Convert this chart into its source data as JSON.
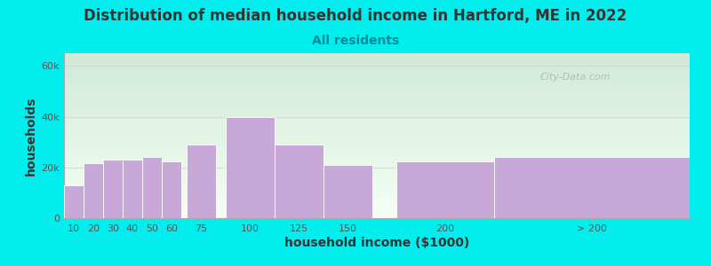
{
  "title": "Distribution of median household income in Hartford, ME in 2022",
  "subtitle": "All residents",
  "xlabel": "household income ($1000)",
  "ylabel": "households",
  "background_color": "#00EEEE",
  "plot_bg_top_color": "#d0ead8",
  "plot_bg_bottom_color": "#f5fff5",
  "bar_color": "#c8a8d8",
  "bar_edge_color": "#ffffff",
  "yticks": [
    0,
    20000,
    40000,
    60000
  ],
  "ytick_labels": [
    "0",
    "20k",
    "40k",
    "60k"
  ],
  "ylim": [
    0,
    65000
  ],
  "title_color": "#333333",
  "subtitle_color": "#008899",
  "axis_label_color": "#333333",
  "tick_color": "#555555",
  "watermark_text": "City-Data.com",
  "watermark_color": "#aaaaaa",
  "title_fontsize": 12,
  "subtitle_fontsize": 10,
  "axis_label_fontsize": 10,
  "tick_fontsize": 8,
  "bar_heights": [
    13000,
    21500,
    23000,
    23000,
    24000,
    22500,
    29000,
    40000,
    29000,
    21000,
    22500,
    24000
  ],
  "bar_x_centers": [
    1,
    2,
    3,
    4,
    5,
    6,
    7.5,
    10,
    12.5,
    15,
    20,
    27.5
  ],
  "bar_x_widths": [
    1,
    1,
    1,
    1,
    1,
    1,
    1.5,
    2.5,
    2.5,
    2.5,
    5,
    10
  ],
  "xtick_xvals": [
    1,
    2,
    3,
    4,
    5,
    6,
    7.5,
    10,
    12.5,
    15,
    20,
    27.5
  ],
  "xtick_labels": [
    "10",
    "20",
    "30",
    "40",
    "50",
    "60",
    "75",
    "100",
    "125",
    "150",
    "200",
    "> 200"
  ],
  "xlim": [
    0.5,
    32.5
  ]
}
